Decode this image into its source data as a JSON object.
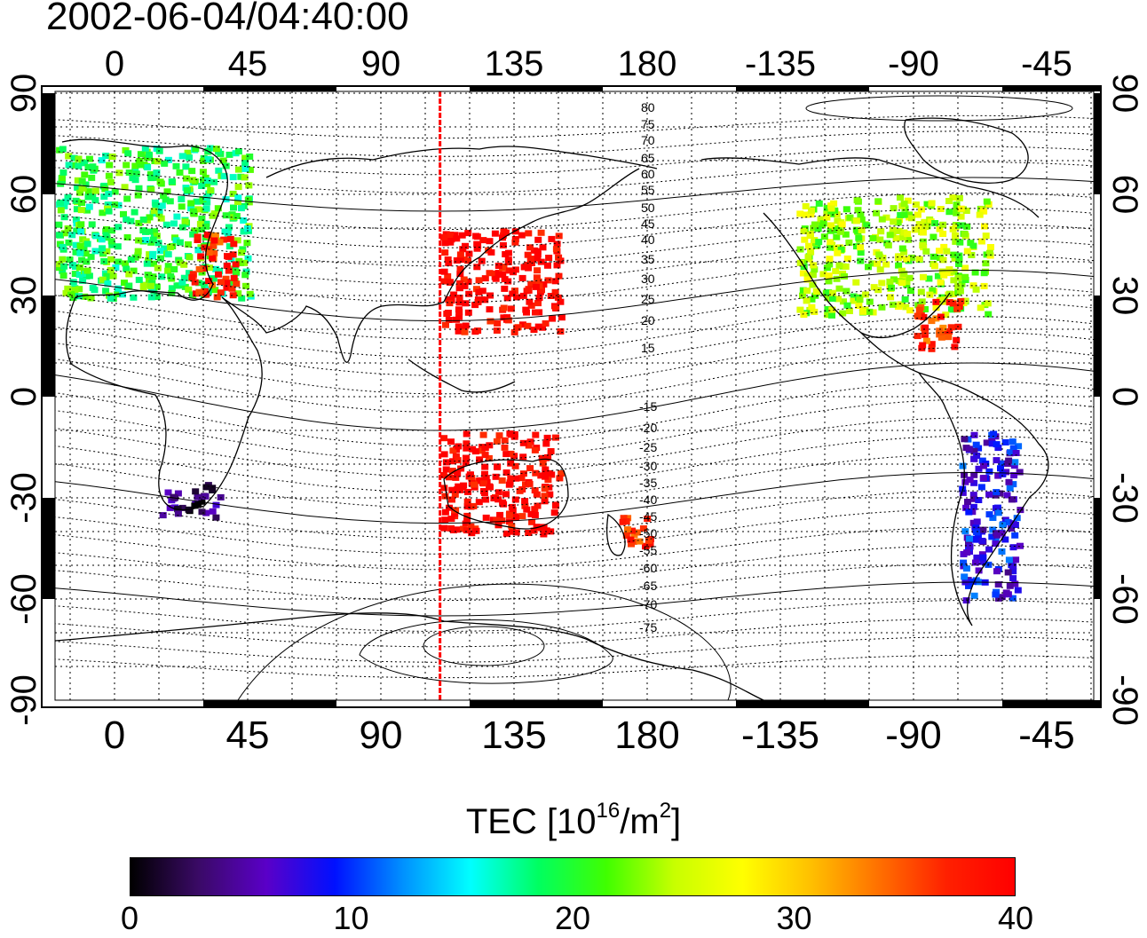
{
  "timestamp": "2002-06-04/04:40:00",
  "colorbar": {
    "label": "TEC  [10",
    "label_exp": "16",
    "label_mid": "/m",
    "label_exp2": "2",
    "label_end": "]",
    "min": 0,
    "max": 40,
    "ticks": [
      "0",
      "10",
      "20",
      "30",
      "40"
    ],
    "colors": [
      "#000000",
      "#3a0a66",
      "#5a00c8",
      "#0010ff",
      "#0090ff",
      "#00ffff",
      "#00ff60",
      "#40ff00",
      "#c8ff00",
      "#ffff00",
      "#ffc000",
      "#ff7000",
      "#ff2000",
      "#ff0000"
    ]
  },
  "axes": {
    "lon_ticks": [
      "0",
      "45",
      "90",
      "135",
      "180",
      "-135",
      "-90",
      "-45"
    ],
    "lat_ticks": [
      "90",
      "60",
      "30",
      "0",
      "-30",
      "-60",
      "-90"
    ]
  },
  "terminator": {
    "longitude": 110,
    "color": "#ff0000"
  },
  "contour_labels": [
    "80",
    "75",
    "70",
    "65",
    "60",
    "55",
    "50",
    "45",
    "40",
    "35",
    "30",
    "25",
    "20",
    "15",
    "-15",
    "-20",
    "-25",
    "-30",
    "-35",
    "-40",
    "-45",
    "-50",
    "-55",
    "-60",
    "-65",
    "-70",
    "-75"
  ],
  "chart_data": {
    "type": "heatmap",
    "title": "2002-06-04/04:40:00",
    "colorbar_label": "TEC [10^16/m^2]",
    "value_range": [
      0,
      40
    ],
    "xlim": [
      -25,
      345
    ],
    "ylim": [
      -90,
      90
    ],
    "regions": [
      {
        "lon": [
          -20,
          45
        ],
        "lat": [
          30,
          75
        ],
        "value": 20
      },
      {
        "lon": [
          25,
          40
        ],
        "lat": [
          30,
          50
        ],
        "value": 37
      },
      {
        "lon": [
          110,
          150
        ],
        "lat": [
          20,
          50
        ],
        "value": 40
      },
      {
        "lon": [
          -130,
          -65
        ],
        "lat": [
          25,
          60
        ],
        "value": 24
      },
      {
        "lon": [
          -90,
          -75
        ],
        "lat": [
          15,
          30
        ],
        "value": 36
      },
      {
        "lon": [
          170,
          180
        ],
        "lat": [
          -45,
          -35
        ],
        "value": 36
      },
      {
        "lon": [
          15,
          35
        ],
        "lat": [
          -35,
          -25
        ],
        "value": 3
      },
      {
        "lon": [
          110,
          150
        ],
        "lat": [
          -40,
          -10
        ],
        "value": 40
      },
      {
        "lon": [
          -75,
          -55
        ],
        "lat": [
          -60,
          -10
        ],
        "value": 8
      }
    ]
  }
}
